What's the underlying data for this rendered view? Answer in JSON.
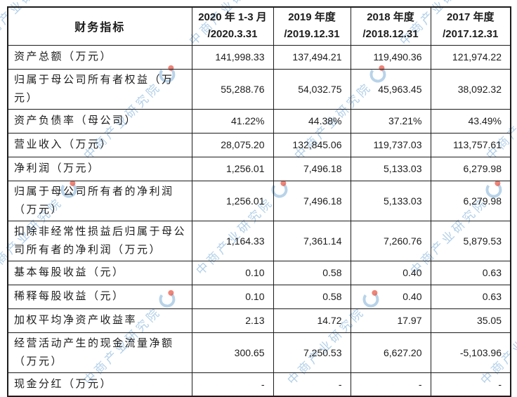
{
  "watermark": {
    "text": "中商产业研究院",
    "accent_color": "#7eafd8",
    "dot_color": "#e95542"
  },
  "table": {
    "header": {
      "indicator": "财务指标",
      "periods": [
        {
          "line1": "2020 年 1-3 月",
          "line2": "/2020.3.31"
        },
        {
          "line1": "2019 年度",
          "line2": "/2019.12.31"
        },
        {
          "line1": "2018 年度",
          "line2": "/2018.12.31"
        },
        {
          "line1": "2017 年度",
          "line2": "/2017.12.31"
        }
      ]
    },
    "rows": [
      {
        "label": "资产总额（万元）",
        "values": [
          "141,998.33",
          "137,494.21",
          "119,490.36",
          "121,974.22"
        ]
      },
      {
        "label": "归属于母公司所有者权益（万元）",
        "values": [
          "55,288.76",
          "54,032.75",
          "45,963.45",
          "38,092.32"
        ]
      },
      {
        "label": "资产负债率（母公司）",
        "values": [
          "41.22%",
          "44.38%",
          "37.21%",
          "43.49%"
        ]
      },
      {
        "label": "营业收入（万元）",
        "values": [
          "28,075.20",
          "132,845.06",
          "119,737.03",
          "113,757.61"
        ]
      },
      {
        "label": "净利润（万元）",
        "values": [
          "1,256.01",
          "7,496.18",
          "5,133.03",
          "6,279.98"
        ]
      },
      {
        "label": "归属于母公司所有者的净利润（万元）",
        "values": [
          "1,256.01",
          "7,496.18",
          "5,133.03",
          "6,279.98"
        ]
      },
      {
        "label": "扣除非经常性损益后归属于母公司所有者的净利润（万元）",
        "values": [
          "1,164.33",
          "7,361.14",
          "7,260.76",
          "5,879.53"
        ]
      },
      {
        "label": "基本每股收益（元）",
        "values": [
          "0.10",
          "0.58",
          "0.40",
          "0.63"
        ]
      },
      {
        "label": "稀释每股收益（元）",
        "values": [
          "0.10",
          "0.58",
          "0.40",
          "0.63"
        ]
      },
      {
        "label": "加权平均净资产收益率",
        "values": [
          "2.13",
          "14.72",
          "17.97",
          "35.05"
        ]
      },
      {
        "label": "经营活动产生的现金流量净额（万元）",
        "values": [
          "300.65",
          "7,250.53",
          "6,627.20",
          "-5,103.96"
        ]
      },
      {
        "label": "现金分红（万元）",
        "values": [
          "-",
          "-",
          "-",
          "-"
        ]
      }
    ]
  }
}
